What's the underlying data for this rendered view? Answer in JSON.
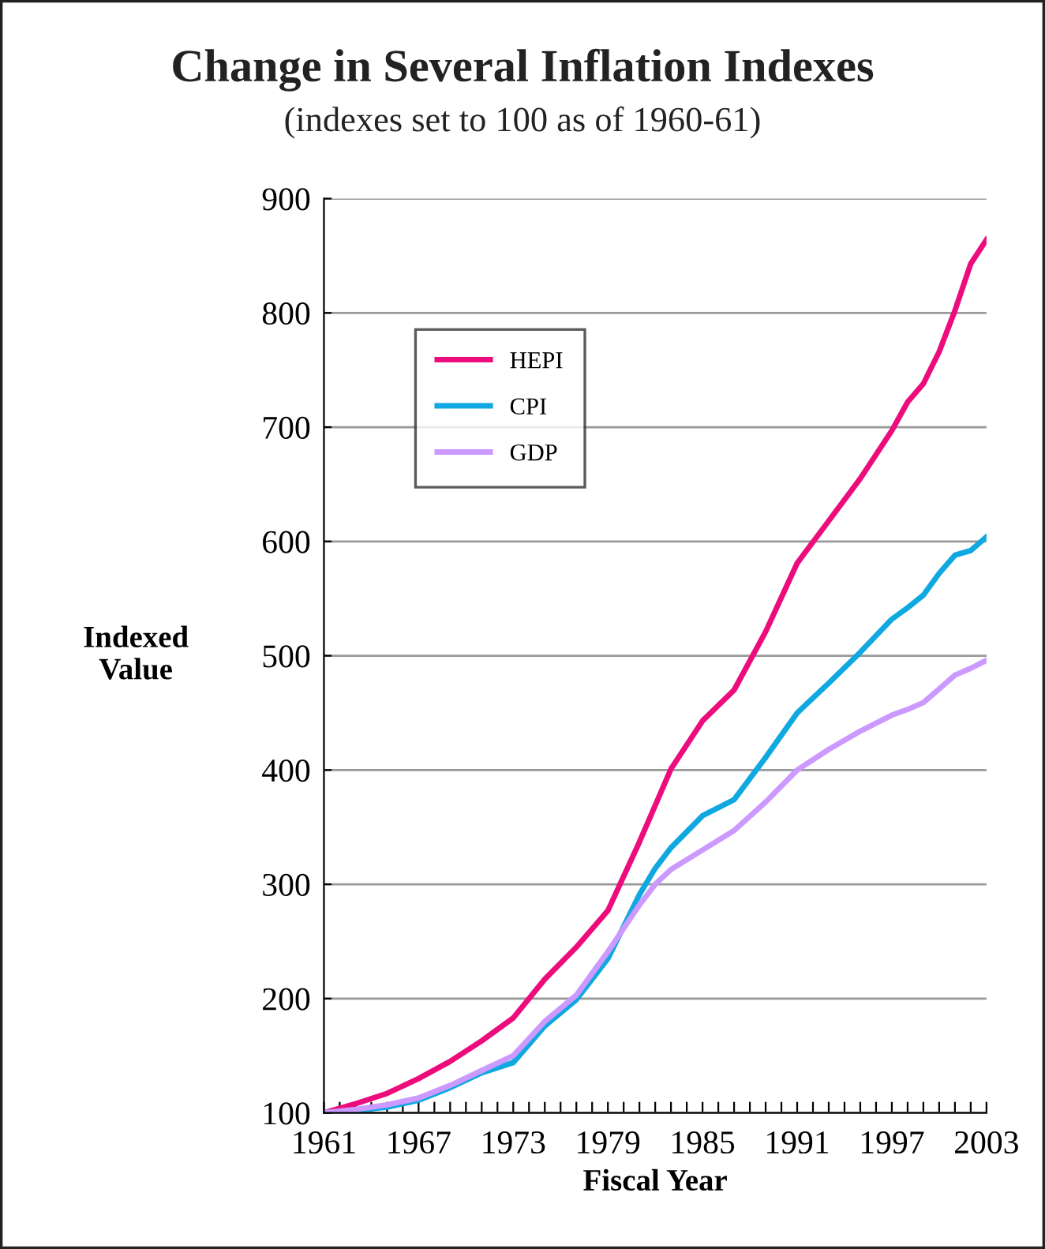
{
  "chart_data": {
    "type": "line",
    "title": "Change in Several Inflation Indexes",
    "subtitle": "(indexes set to 100 as of 1960-61)",
    "xlabel": "Fiscal Year",
    "ylabel": "Indexed\nValue",
    "x": [
      1961,
      1963,
      1965,
      1967,
      1969,
      1971,
      1973,
      1975,
      1977,
      1979,
      1981,
      1982,
      1983,
      1985,
      1987,
      1989,
      1991,
      1993,
      1995,
      1997,
      1998,
      1999,
      2000,
      2001,
      2002,
      2003
    ],
    "series": [
      {
        "name": "HEPI",
        "color": "#ec0c7c",
        "values": [
          100,
          108,
          117,
          130,
          145,
          163,
          183,
          217,
          245,
          277,
          337,
          369,
          401,
          443,
          470,
          521,
          581,
          618,
          655,
          697,
          722,
          738,
          766,
          802,
          843,
          864
        ]
      },
      {
        "name": "CPI",
        "color": "#10a8e0",
        "values": [
          100,
          102,
          105,
          111,
          122,
          135,
          144,
          176,
          199,
          235,
          291,
          314,
          332,
          360,
          374,
          411,
          450,
          476,
          503,
          532,
          542,
          553,
          572,
          588,
          592,
          604
        ]
      },
      {
        "name": "GDP",
        "color": "#cc99ff",
        "values": [
          100,
          103,
          107,
          113,
          124,
          137,
          150,
          180,
          203,
          241,
          282,
          300,
          313,
          330,
          347,
          372,
          400,
          418,
          434,
          448,
          453,
          459,
          471,
          483,
          489,
          496
        ]
      }
    ],
    "xlim": [
      1961,
      2003
    ],
    "xticks": [
      1961,
      {
        "value": 1962,
        "label": null
      },
      {
        "value": 1963,
        "label": null
      },
      {
        "value": 1964,
        "label": null
      },
      {
        "value": 1965,
        "label": null
      },
      {
        "value": 1966,
        "label": null
      },
      1967,
      {
        "value": 1968,
        "label": null
      },
      {
        "value": 1969,
        "label": null
      },
      {
        "value": 1970,
        "label": null
      },
      {
        "value": 1971,
        "label": null
      },
      {
        "value": 1972,
        "label": null
      },
      1973,
      {
        "value": 1974,
        "label": null
      },
      {
        "value": 1975,
        "label": null
      },
      {
        "value": 1976,
        "label": null
      },
      {
        "value": 1977,
        "label": null
      },
      {
        "value": 1978,
        "label": null
      },
      1979,
      {
        "value": 1980,
        "label": null
      },
      {
        "value": 1981,
        "label": null
      },
      {
        "value": 1982,
        "label": null
      },
      {
        "value": 1983,
        "label": null
      },
      {
        "value": 1984,
        "label": null
      },
      1985,
      {
        "value": 1986,
        "label": null
      },
      {
        "value": 1987,
        "label": null
      },
      {
        "value": 1988,
        "label": null
      },
      {
        "value": 1989,
        "label": null
      },
      {
        "value": 1990,
        "label": null
      },
      1991,
      {
        "value": 1992,
        "label": null
      },
      {
        "value": 1993,
        "label": null
      },
      {
        "value": 1994,
        "label": null
      },
      {
        "value": 1995,
        "label": null
      },
      {
        "value": 1996,
        "label": null
      },
      1997,
      {
        "value": 1998,
        "label": null
      },
      {
        "value": 1999,
        "label": null
      },
      {
        "value": 2000,
        "label": null
      },
      {
        "value": 2001,
        "label": null
      },
      {
        "value": 2002,
        "label": null
      },
      2003
    ],
    "ylim": [
      100,
      900
    ],
    "yticks": [
      100,
      200,
      300,
      400,
      500,
      600,
      700,
      800,
      900
    ],
    "grid": "y",
    "legend": "top left",
    "marker": "none",
    "line_style": "solid"
  }
}
